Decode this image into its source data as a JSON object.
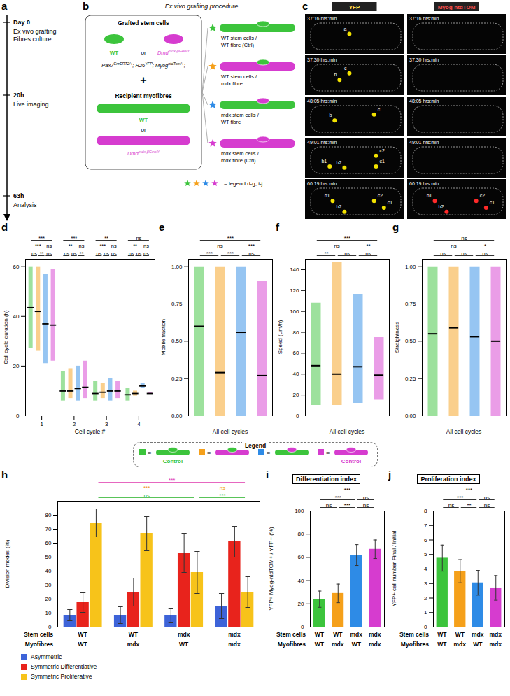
{
  "panel_a": {
    "panel_label": "a",
    "events": [
      {
        "time": "Day 0",
        "text": [
          "Ex vivo grafting",
          "Fibres culture"
        ]
      },
      {
        "time": "20h",
        "text": [
          "Live imaging"
        ]
      },
      {
        "time": "63h",
        "text": [
          "Analysis"
        ]
      }
    ]
  },
  "panel_b": {
    "panel_label": "b",
    "title": "Ex vivo grafting procedure",
    "donor_title": "Grafted stem cells",
    "recipient_title": "Recipient myofibres",
    "wt": "WT",
    "or": "or",
    "plus": "+",
    "reporter_genotype": [
      {
        "text": "Pax7",
        "sup": "CreERT2/+"
      },
      {
        "text": "; R26",
        "sup": "YFP"
      },
      {
        "text": "; Myog",
        "sup": "ntdTom/+"
      },
      {
        "text": ";"
      }
    ],
    "mdx_genotype": [
      {
        "text": "Dmd",
        "sup": "mdx-βGeo/Y"
      }
    ],
    "type_colors": {
      "WT": "#3cc43c",
      "mdx": "#d63ccf"
    },
    "combinations": [
      {
        "text": "WT stem cells / WT fibre (Ctrl)",
        "color": "#3cc43c"
      },
      {
        "text": "WT stem cells / mdx fibre",
        "color": "#f5a01a"
      },
      {
        "text": "mdx stem cells / WT fibre",
        "color": "#2e8be6"
      },
      {
        "text": "mdx stem cells / mdx fibre (Ctrl)",
        "color": "#d63ccf"
      }
    ],
    "legend_note": "= legend d-g, i-j"
  },
  "panel_c": {
    "panel_label": "c",
    "channels": [
      "YFP",
      "Myog-ntdTOM"
    ],
    "frames": [
      {
        "time": "37:16 hrs:min",
        "yfp": [
          "a"
        ],
        "tom": []
      },
      {
        "time": "37:30 hrs:min",
        "yfp": [
          "b",
          "c"
        ],
        "tom": []
      },
      {
        "time": "48:05 hrs:min",
        "yfp": [
          "b",
          "c"
        ],
        "tom": []
      },
      {
        "time": "49:01 hrs:min",
        "yfp": [
          "b1",
          "b2",
          "c2",
          "c1"
        ],
        "tom": []
      },
      {
        "time": "60:19 hrs:min",
        "yfp": [
          "b1",
          "b2",
          "c2",
          "c1"
        ],
        "tom": [
          "b1",
          "c2",
          "c1",
          "b2"
        ]
      }
    ]
  },
  "legend_row": {
    "title": "Legend",
    "equals": "=",
    "items": [
      {
        "color": "#3cc43c",
        "note": "Control"
      },
      {
        "color": "#f5a01a"
      },
      {
        "color": "#2e8be6"
      },
      {
        "color": "#d63ccf",
        "note": "Control"
      }
    ]
  },
  "chart_data": [
    {
      "panel_label": "d",
      "type": "strip",
      "ylabel": "Cell cycle duration (h)",
      "xlabel": "Cell cycle #",
      "categories": [
        1,
        2,
        3,
        4
      ],
      "ylim": [
        0,
        63
      ],
      "yticks": [
        0,
        20,
        40,
        60
      ],
      "series": [
        {
          "color": "#3cc43c",
          "values": [
            43.5,
            10,
            9,
            8.5
          ],
          "min": [
            27,
            6,
            6,
            6
          ],
          "max": [
            60,
            18,
            14,
            11
          ]
        },
        {
          "color": "#f5a01a",
          "values": [
            42,
            10,
            9.5,
            9
          ],
          "min": [
            26,
            7,
            7,
            8
          ],
          "max": [
            60,
            19,
            13,
            10
          ]
        },
        {
          "color": "#2e8be6",
          "values": [
            37,
            11,
            10,
            12
          ],
          "min": [
            21,
            6,
            6,
            11
          ],
          "max": [
            57,
            20,
            15,
            13
          ]
        },
        {
          "color": "#d63ccf",
          "values": [
            36.5,
            11.5,
            10,
            9
          ],
          "min": [
            22,
            7,
            7,
            9
          ],
          "max": [
            59,
            22,
            14,
            9.5
          ]
        }
      ],
      "significance": [
        [
          {
            "labels": [
              "***"
            ]
          },
          {
            "labels": [
              "***",
              "ns"
            ]
          },
          {
            "labels": [
              "ns",
              "**",
              "ns"
            ]
          }
        ],
        [
          {
            "labels": [
              "***"
            ]
          },
          {
            "labels": [
              "**",
              "ns"
            ]
          },
          {
            "labels": [
              "ns",
              "ns",
              "**"
            ]
          }
        ],
        [
          {
            "labels": [
              "**"
            ]
          },
          {
            "labels": [
              "***",
              "ns"
            ]
          },
          {
            "labels": [
              "ns",
              "ns",
              "ns"
            ]
          }
        ],
        [
          {
            "labels": [
              "ns"
            ]
          },
          {
            "labels": [
              "**",
              "ns"
            ]
          },
          {
            "labels": [
              "ns",
              "ns",
              "ns"
            ]
          }
        ]
      ]
    },
    {
      "panel_label": "e",
      "type": "range",
      "ylabel": "Mobile fraction",
      "xlabel": "All cell cycles",
      "ylim": [
        0,
        1.05
      ],
      "yticks": [
        {
          "value": 0,
          "label": "0.00"
        },
        {
          "value": 0.25,
          "label": "0.25"
        },
        {
          "value": 0.5,
          "label": "0.50"
        },
        {
          "value": 0.75,
          "label": "0.75"
        },
        {
          "value": 1,
          "label": "1.00"
        }
      ],
      "colors": [
        "#3cc43c",
        "#f5a01a",
        "#2e8be6",
        "#d63ccf"
      ],
      "values": [
        0.6,
        0.29,
        0.56,
        0.27
      ],
      "min": [
        0,
        0,
        0,
        0
      ],
      "max": [
        1,
        1,
        1,
        0.9
      ],
      "significance": [
        {
          "labels": [
            "***"
          ]
        },
        {
          "labels": [
            "ns",
            "***"
          ]
        },
        {
          "labels": [
            "***",
            "***",
            "ns"
          ]
        }
      ]
    },
    {
      "panel_label": "f",
      "type": "range",
      "ylabel": "Speed (µm/h)",
      "xlabel": "All cell cycles",
      "ylim": [
        0,
        150
      ],
      "yticks": [
        0,
        20,
        40,
        60,
        80,
        100,
        120,
        140
      ],
      "colors": [
        "#3cc43c",
        "#f5a01a",
        "#2e8be6",
        "#d63ccf"
      ],
      "values": [
        48,
        40,
        47,
        39
      ],
      "min": [
        10,
        10,
        12,
        15
      ],
      "max": [
        108,
        147,
        116,
        75
      ],
      "significance": [
        {
          "labels": [
            "***"
          ]
        },
        {
          "labels": [
            "ns",
            "**"
          ]
        },
        {
          "labels": [
            "**",
            "ns",
            "ns"
          ]
        }
      ]
    },
    {
      "panel_label": "g",
      "type": "range",
      "ylabel": "Straightness",
      "xlabel": "All cell cycles",
      "ylim": [
        0,
        1.05
      ],
      "yticks": [
        {
          "value": 0,
          "label": "0.00"
        },
        {
          "value": 0.25,
          "label": "0.25"
        },
        {
          "value": 0.5,
          "label": "0.50"
        },
        {
          "value": 0.75,
          "label": "0.75"
        },
        {
          "value": 1,
          "label": "1.00"
        }
      ],
      "colors": [
        "#3cc43c",
        "#f5a01a",
        "#2e8be6",
        "#d63ccf"
      ],
      "values": [
        0.55,
        0.59,
        0.53,
        0.5
      ],
      "min": [
        0,
        0,
        0,
        0
      ],
      "max": [
        1,
        1,
        1,
        1
      ],
      "significance": [
        {
          "labels": [
            "ns"
          ]
        },
        {
          "labels": [
            "ns",
            "*"
          ]
        },
        {
          "labels": [
            "ns",
            "ns",
            "ns"
          ]
        }
      ]
    },
    {
      "panel_label": "h",
      "type": "bar",
      "ylabel": "Division modes (%)",
      "ylim": [
        0,
        90
      ],
      "yticks": [
        0,
        10,
        20,
        30,
        40,
        50,
        60,
        70,
        80
      ],
      "category_rows": [
        {
          "name": "Stem cells",
          "labels": [
            "WT",
            "WT",
            "mdx",
            "mdx"
          ]
        },
        {
          "name": "Myofibres",
          "labels": [
            "WT",
            "mdx",
            "WT",
            "mdx"
          ]
        }
      ],
      "series": [
        {
          "name": "Asymmetric",
          "color": "#3d63d8",
          "values": [
            8.5,
            8.5,
            8.5,
            15
          ],
          "errors": [
            4,
            6,
            5,
            9
          ]
        },
        {
          "name": "Symmetric Differentiative",
          "color": "#e8231c",
          "values": [
            17.5,
            25,
            53,
            61
          ],
          "errors": [
            7,
            10,
            14,
            11
          ]
        },
        {
          "name": "Symmetric Proliferative",
          "color": "#f7c31a",
          "values": [
            74.5,
            67,
            39,
            25
          ],
          "errors": [
            10,
            12,
            15,
            11
          ]
        }
      ],
      "legend": "bottom",
      "significance": [
        {
          "labels": [
            "***"
          ],
          "color": "#e040b0"
        },
        {
          "labels": [
            "***",
            "ns"
          ],
          "color": "#f29a1f"
        },
        {
          "labels": [
            "ns",
            "***"
          ],
          "color": "#2fb52f"
        }
      ]
    },
    {
      "panel_label": "i",
      "type": "bar",
      "title": "Differentiation index",
      "ylabel": "YFP+ Myog-ntdTOM+ / YFP+ (%)",
      "ylim": [
        0,
        100
      ],
      "yticks": [
        0,
        20,
        40,
        60,
        80,
        100
      ],
      "colors": [
        "#3cc43c",
        "#f5a01a",
        "#2e8be6",
        "#d63ccf"
      ],
      "values": [
        24,
        29,
        62,
        67
      ],
      "errors": [
        7,
        8,
        9,
        8
      ],
      "category_rows": [
        {
          "name": "Stem cells",
          "labels": [
            "WT",
            "WT",
            "mdx",
            "mdx"
          ]
        },
        {
          "name": "Myofibres",
          "labels": [
            "WT",
            "mdx",
            "WT",
            "mdx"
          ]
        }
      ],
      "significance": [
        {
          "labels": [
            "***"
          ]
        },
        {
          "labels": [
            "***",
            "ns"
          ]
        },
        {
          "labels": [
            "ns",
            "***",
            "ns"
          ]
        }
      ]
    },
    {
      "panel_label": "j",
      "type": "bar",
      "title": "Proliferation index",
      "ylabel": "YFP+ cell number Final / Initial",
      "ylim": [
        0,
        8
      ],
      "yticks": [
        0,
        1,
        2,
        3,
        4,
        5,
        6,
        7,
        8
      ],
      "colors": [
        "#3cc43c",
        "#f5a01a",
        "#2e8be6",
        "#d63ccf"
      ],
      "values": [
        4.75,
        3.85,
        3.05,
        2.7
      ],
      "errors": [
        0.9,
        0.8,
        0.85,
        0.85
      ],
      "category_rows": [
        {
          "name": "Stem cells",
          "labels": [
            "WT",
            "WT",
            "mdx",
            "mdx"
          ]
        },
        {
          "name": "Myofibres",
          "labels": [
            "WT",
            "mdx",
            "WT",
            "mdx"
          ]
        }
      ],
      "significance": [
        {
          "labels": [
            "***"
          ]
        },
        {
          "labels": [
            "***",
            "ns"
          ]
        },
        {
          "labels": [
            "ns",
            "**",
            "ns"
          ]
        }
      ]
    }
  ]
}
